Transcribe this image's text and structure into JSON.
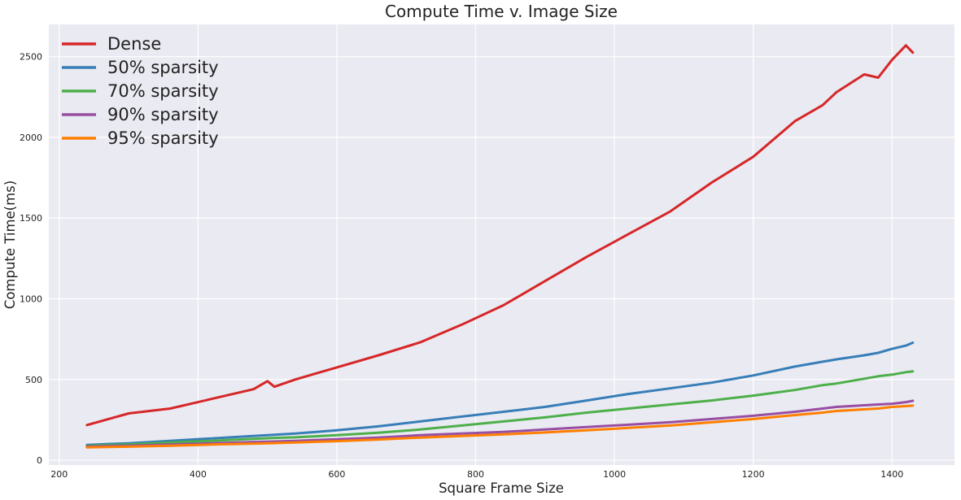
{
  "chart_data": {
    "type": "line",
    "title": "Compute Time v. Image Size",
    "xlabel": "Square Frame Size",
    "ylabel": "Compute Time(ms)",
    "xlim": [
      185,
      1490
    ],
    "ylim": [
      -30,
      2700
    ],
    "xticks": [
      200,
      400,
      600,
      800,
      1000,
      1200,
      1400
    ],
    "yticks": [
      0,
      500,
      1000,
      1500,
      2000,
      2500
    ],
    "grid": true,
    "legend_position": "top-left",
    "background": "#eaeaf2",
    "x": [
      240,
      300,
      360,
      420,
      480,
      500,
      510,
      540,
      600,
      660,
      720,
      780,
      840,
      900,
      960,
      1020,
      1080,
      1140,
      1200,
      1260,
      1300,
      1320,
      1360,
      1380,
      1400,
      1420,
      1430
    ],
    "series": [
      {
        "name": "Dense",
        "color": "#d62728",
        "values": [
          218,
          290,
          320,
          380,
          440,
          490,
          455,
          500,
          575,
          650,
          730,
          840,
          960,
          1110,
          1260,
          1400,
          1540,
          1720,
          1880,
          2100,
          2200,
          2280,
          2390,
          2370,
          2480,
          2570,
          2525
        ]
      },
      {
        "name": "50% sparsity",
        "color": "#377eb8",
        "values": [
          95,
          105,
          120,
          135,
          150,
          155,
          158,
          165,
          185,
          210,
          240,
          270,
          300,
          330,
          370,
          410,
          445,
          480,
          525,
          580,
          610,
          625,
          650,
          665,
          690,
          710,
          728
        ]
      },
      {
        "name": "70% sparsity",
        "color": "#4daf4a",
        "values": [
          90,
          98,
          110,
          120,
          132,
          136,
          138,
          142,
          155,
          170,
          190,
          215,
          240,
          265,
          295,
          320,
          345,
          370,
          400,
          435,
          465,
          475,
          505,
          520,
          530,
          545,
          550
        ]
      },
      {
        "name": "90% sparsity",
        "color": "#984ea3",
        "values": [
          85,
          90,
          97,
          105,
          113,
          115,
          116,
          120,
          130,
          140,
          155,
          165,
          175,
          190,
          205,
          220,
          235,
          255,
          275,
          300,
          320,
          330,
          340,
          345,
          350,
          360,
          368
        ]
      },
      {
        "name": "95% sparsity",
        "color": "#ff7f00",
        "values": [
          80,
          84,
          90,
          97,
          103,
          105,
          106,
          110,
          118,
          128,
          140,
          150,
          160,
          172,
          185,
          200,
          215,
          235,
          255,
          280,
          295,
          305,
          315,
          320,
          330,
          335,
          338
        ]
      }
    ]
  }
}
